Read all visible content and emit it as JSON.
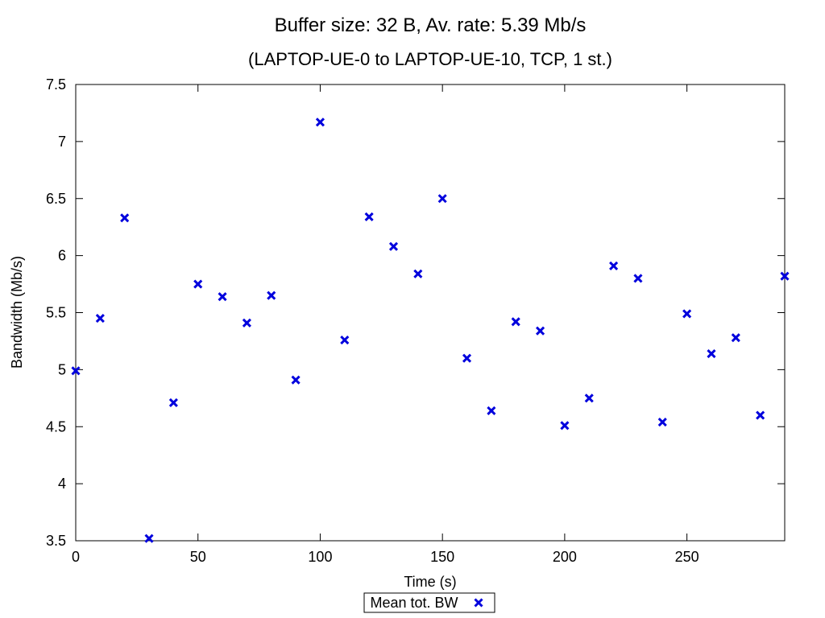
{
  "chart_data": {
    "type": "scatter",
    "title": "Buffer size: 32 B, Av. rate: 5.39 Mb/s",
    "subtitle": "(LAPTOP-UE-0 to LAPTOP-UE-10, TCP, 1 st.)",
    "xlabel": "Time (s)",
    "ylabel": "Bandwidth (Mb/s)",
    "xlim": [
      0,
      290
    ],
    "ylim": [
      3.5,
      7.5
    ],
    "xticks": [
      0,
      50,
      100,
      150,
      200,
      250
    ],
    "yticks": [
      3.5,
      4,
      4.5,
      5,
      5.5,
      6,
      6.5,
      7,
      7.5
    ],
    "grid": false,
    "legend_position": "bottom-center",
    "series": [
      {
        "name": "Mean tot. BW",
        "color": "#0000dd",
        "marker": "cross",
        "x": [
          0,
          10,
          20,
          30,
          40,
          50,
          60,
          70,
          80,
          90,
          100,
          110,
          120,
          130,
          140,
          150,
          160,
          170,
          180,
          190,
          200,
          210,
          220,
          230,
          240,
          250,
          260,
          270,
          280,
          290
        ],
        "y": [
          4.99,
          5.45,
          6.33,
          3.52,
          4.71,
          5.75,
          5.64,
          5.41,
          5.65,
          4.91,
          7.17,
          5.26,
          6.34,
          6.08,
          5.84,
          6.5,
          5.1,
          4.64,
          5.42,
          5.34,
          4.51,
          4.75,
          5.91,
          5.8,
          4.54,
          5.49,
          5.14,
          5.28,
          4.6,
          5.82
        ]
      }
    ]
  }
}
